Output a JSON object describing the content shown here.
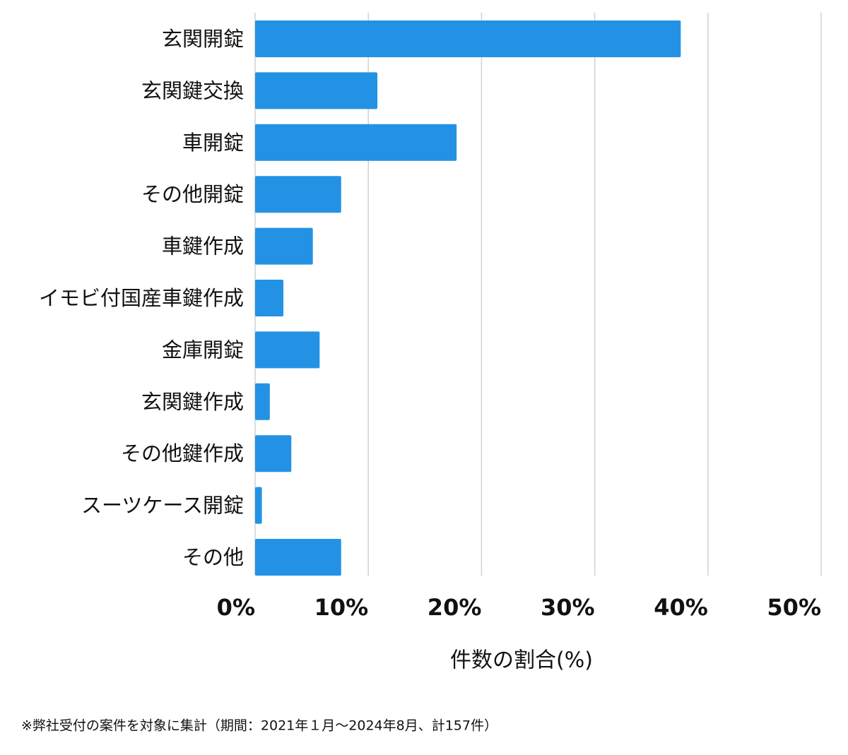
{
  "chart_data": {
    "type": "barh",
    "categories": [
      "玄関開錠",
      "玄関鍵交換",
      "車開錠",
      "その他開錠",
      "車鍵作成",
      "イモビ付国産車鍵作成",
      "金庫開錠",
      "玄関鍵作成",
      "その他鍵作成",
      "スーツケース開錠",
      "その他"
    ],
    "values": [
      37.6,
      10.8,
      17.8,
      7.6,
      5.1,
      2.5,
      5.7,
      1.3,
      3.2,
      0.6,
      7.6
    ],
    "color": "#2492e4",
    "xlim": [
      0,
      50
    ],
    "xticks": [
      {
        "value": 0,
        "label": "0%"
      },
      {
        "value": 10,
        "label": "10%"
      },
      {
        "value": 20,
        "label": "20%"
      },
      {
        "value": 30,
        "label": "30%"
      },
      {
        "value": 40,
        "label": "40%"
      },
      {
        "value": 50,
        "label": "50%"
      }
    ],
    "grid": true,
    "xlabel": "件数の割合(%)",
    "footnote": "※弊社受付の案件を対象に集計（期間：2021年１月〜2024年8月、計157件）"
  }
}
